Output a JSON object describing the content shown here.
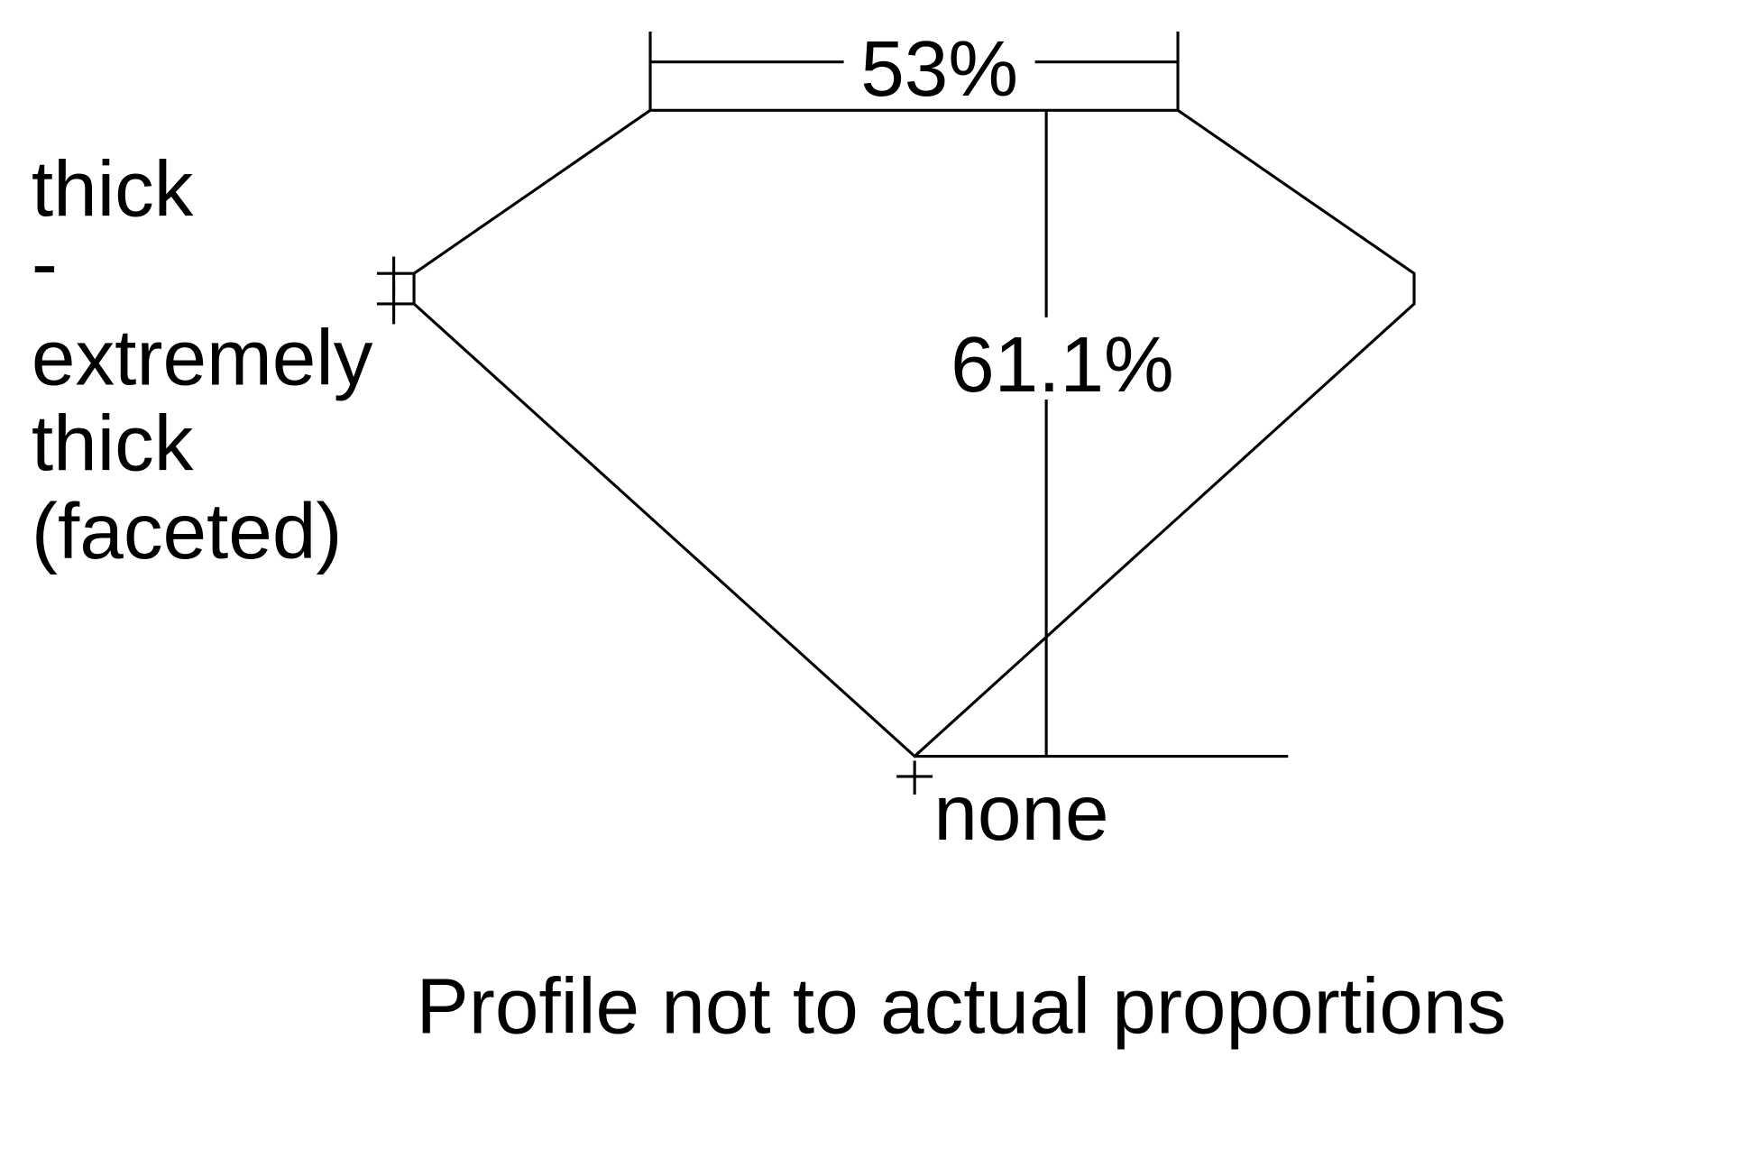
{
  "diagram": {
    "table_percent": "53%",
    "depth_percent": "61.1%",
    "girdle_label": [
      "thick",
      "-",
      "extremely",
      "thick",
      "(faceted)"
    ],
    "culet_label": "none",
    "note": "Profile not to actual proportions",
    "line_color": "#000000",
    "background": "#ffffff"
  }
}
